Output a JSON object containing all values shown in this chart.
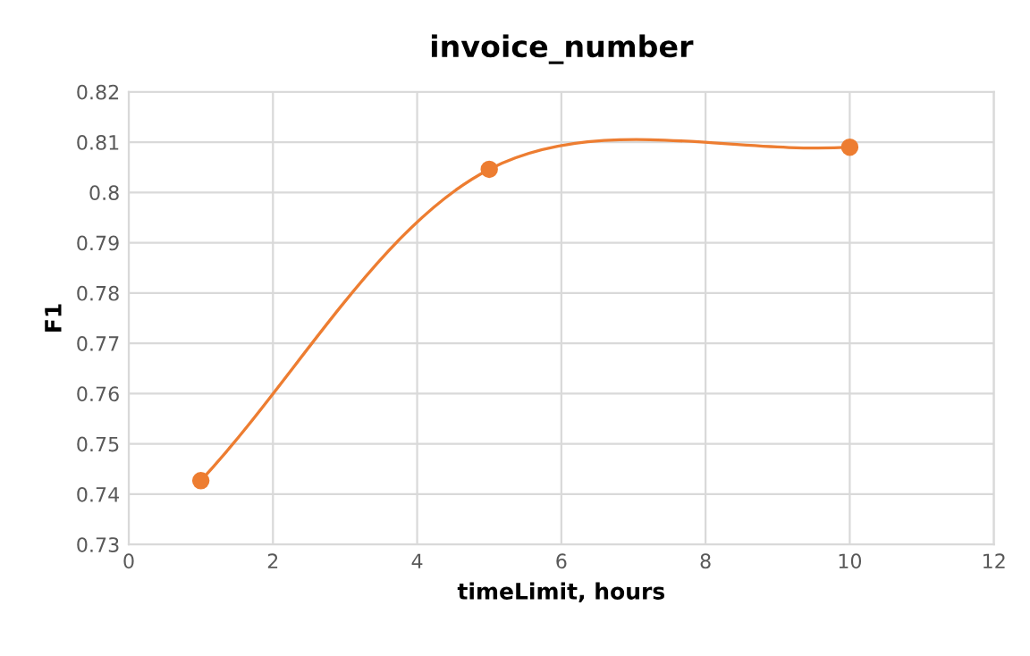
{
  "chart_data": {
    "type": "line",
    "title": "invoice_number",
    "xlabel": "timeLimit, hours",
    "ylabel": "F1",
    "x": [
      1,
      5,
      10
    ],
    "series": [
      {
        "color": "#ed7d31",
        "values": [
          0.7427,
          0.8046,
          0.809
        ]
      }
    ],
    "xlim": [
      0,
      12
    ],
    "xticks": [
      0,
      2,
      4,
      6,
      8,
      10,
      12
    ],
    "ylim": [
      0.73,
      0.82
    ],
    "yticks": [
      0.73,
      0.74,
      0.75,
      0.76,
      0.77,
      0.78,
      0.79,
      0.8,
      0.81,
      0.82
    ],
    "grid": true,
    "marker": "circle",
    "line_style": "solid"
  }
}
